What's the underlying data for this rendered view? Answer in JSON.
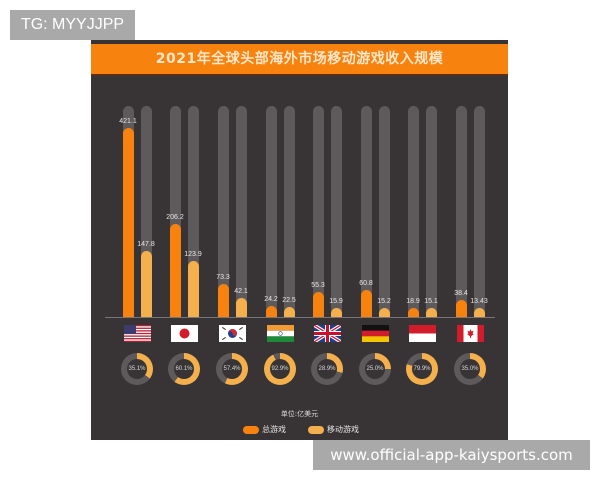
{
  "watermarks": {
    "top": "TG: MYYJJPP",
    "bottom": "www.official-app-kaiysports.com"
  },
  "colors": {
    "panel_bg": "#383435",
    "title_bar": "#f7820e",
    "total_games": "#f7820e",
    "mobile_games": "#f4b04c",
    "track": "#5e5a5b"
  },
  "chart_data": {
    "type": "bar",
    "title": "2021年全球头部海外市场移动游戏收入规模",
    "unit_label": "单位:亿美元",
    "xlabel": "",
    "ylabel": "",
    "ylim": [
      0,
      470
    ],
    "grid": false,
    "legend_position": "bottom",
    "categories": [
      "美国",
      "日本",
      "韩国",
      "印度",
      "英国",
      "德国",
      "印度尼西亚",
      "加拿大"
    ],
    "flags": [
      "us-flag",
      "japan-flag",
      "south-korea-flag",
      "india-flag",
      "uk-flag",
      "germany-flag",
      "indonesia-flag",
      "canada-flag"
    ],
    "series": [
      {
        "name": "总游戏",
        "values": [
          421.1,
          206.2,
          73.3,
          24.2,
          55.3,
          60.8,
          18.9,
          38.4
        ],
        "labels": [
          "421.1",
          "206.2",
          "73.3",
          "24.2",
          "55.3",
          "60.8",
          "18.9",
          "38.4"
        ]
      },
      {
        "name": "移动游戏",
        "values": [
          147.8,
          123.9,
          42.1,
          22.5,
          15.9,
          15.2,
          15.1,
          13.43
        ],
        "labels": [
          "147.8",
          "123.9",
          "42.1",
          "22.5",
          "15.9",
          "15.2",
          "15.1",
          "13.43"
        ]
      }
    ],
    "mobile_share_pct": [
      35.1,
      60.1,
      57.4,
      92.9,
      28.9,
      25.0,
      79.9,
      35.0
    ],
    "mobile_share_labels": [
      "35.1%",
      "60.1%",
      "57.4%",
      "92.9%",
      "28.9%",
      "25.0%",
      "79.9%",
      "35.0%"
    ]
  },
  "legend": {
    "total_label": "总游戏",
    "mobile_label": "移动游戏"
  }
}
